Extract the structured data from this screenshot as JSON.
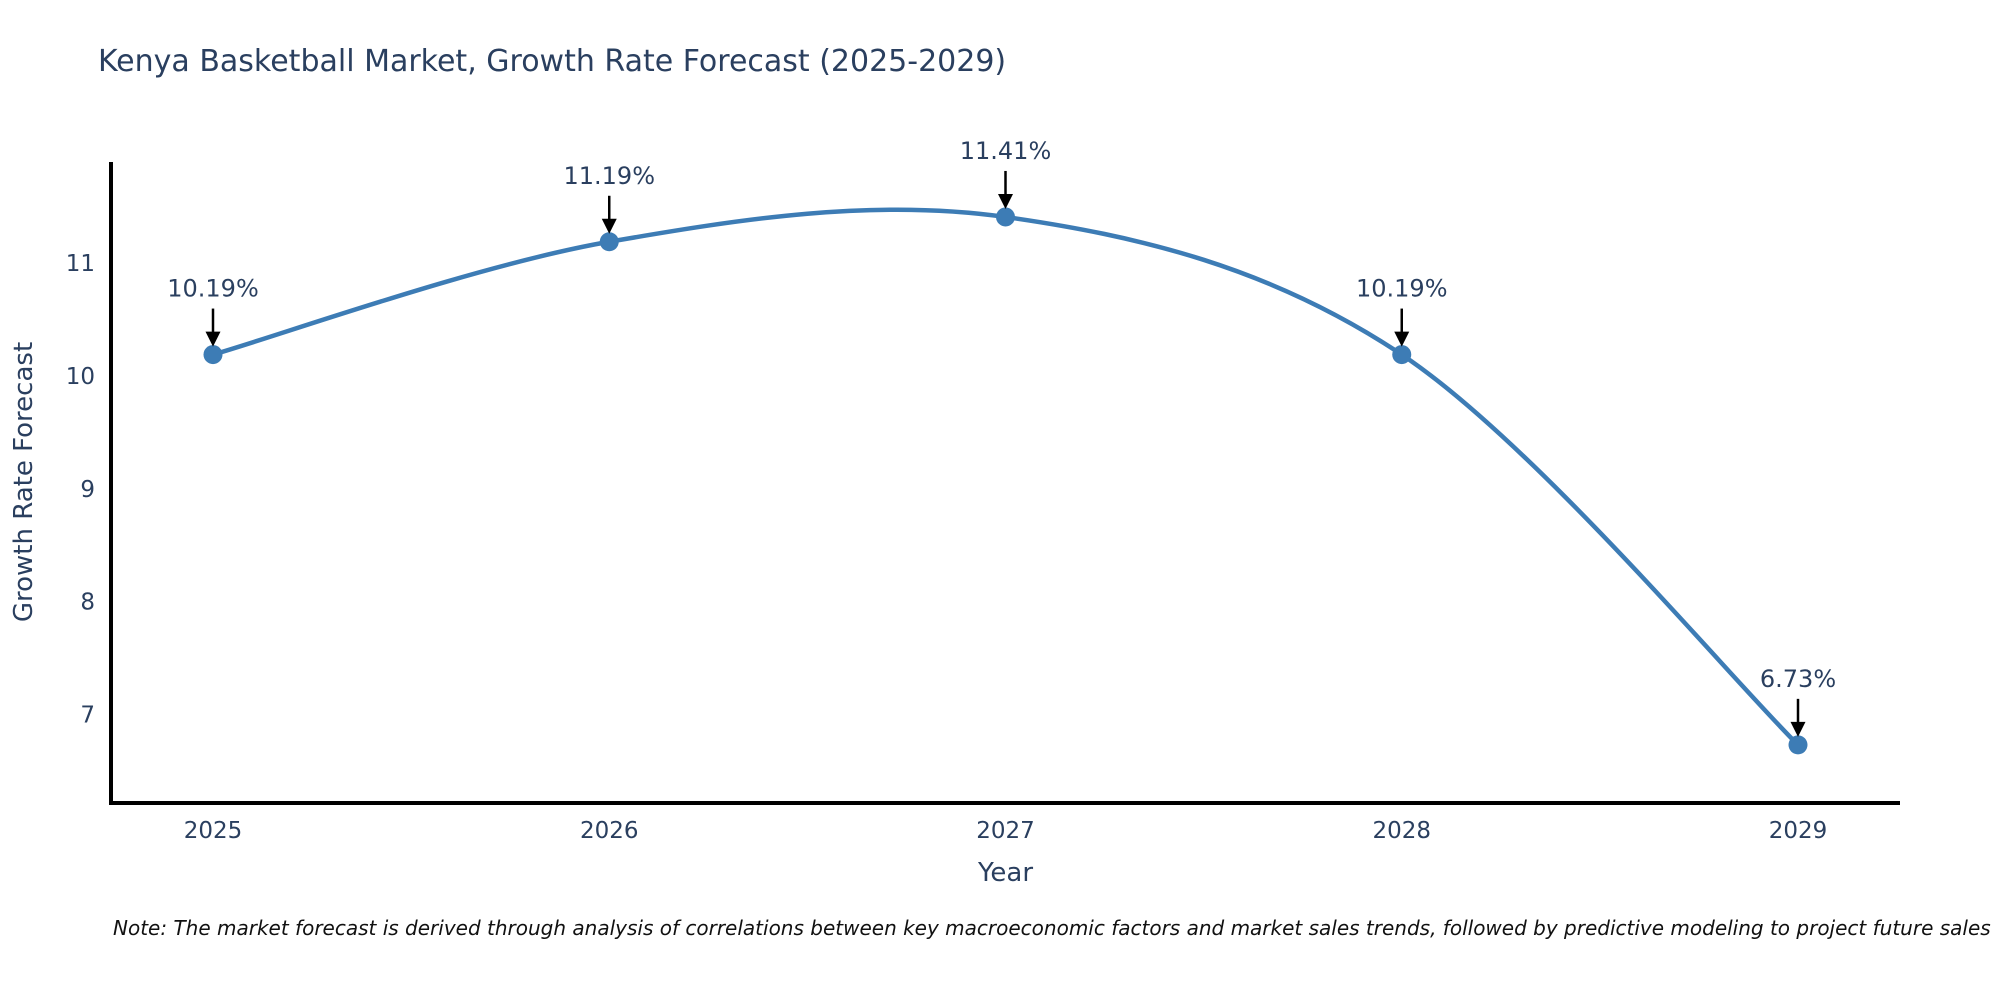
{
  "title": "Kenya Basketball Market, Growth Rate Forecast (2025-2029)",
  "note": "Note: The market forecast is derived through analysis of correlations between key macroeconomic factors and market sales trends, followed by predictive modeling to project future sales",
  "chart_data": {
    "type": "line",
    "title": "Kenya Basketball Market, Growth Rate Forecast (2025-2029)",
    "xlabel": "Year",
    "ylabel": "Growth Rate Forecast",
    "categories": [
      2025,
      2026,
      2027,
      2028,
      2029
    ],
    "series": [
      {
        "name": "Growth Rate Forecast",
        "values": [
          10.19,
          11.19,
          11.41,
          10.19,
          6.73
        ],
        "point_labels": [
          "10.19%",
          "11.19%",
          "11.41%",
          "10.19%",
          "6.73%"
        ]
      }
    ],
    "yticks": [
      7,
      8,
      9,
      10,
      11
    ],
    "ylim": [
      6.2,
      11.9
    ],
    "xlim": [
      2024.74,
      2029.26
    ],
    "line_shape": "spline",
    "grid": false,
    "legend": "none",
    "markers": true,
    "annotation_arrows": true,
    "colors": {
      "line": "#3d7cb5",
      "marker": "#3d7cb5",
      "label_text": "#2a3f5f",
      "tick_text": "#2a3f5f",
      "axis_line": "#000000",
      "arrow": "#000000",
      "note_text": "#111111",
      "background": "#ffffff"
    }
  }
}
